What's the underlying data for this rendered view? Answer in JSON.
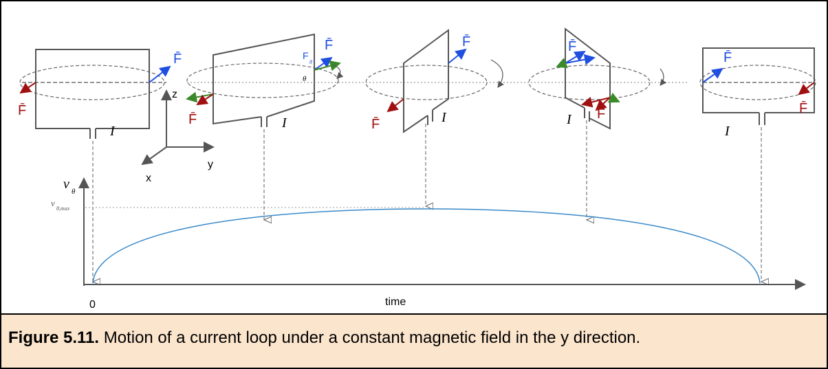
{
  "loops": [
    {
      "forces": [
        "F̄",
        "F̄"
      ],
      "current": "I"
    },
    {
      "forces": [
        "F̄",
        "F̄"
      ],
      "component": "F",
      "component_sub": "θ",
      "angle": "θ",
      "current": "I"
    },
    {
      "forces": [
        "F̄",
        "F̄"
      ],
      "current": "I"
    },
    {
      "forces": [
        "F̄",
        "F̄"
      ],
      "current": "I"
    },
    {
      "forces": [
        "F̄",
        "F̄"
      ],
      "current": "I"
    }
  ],
  "axes": {
    "z": "z",
    "y": "y",
    "x": "x"
  },
  "graph": {
    "y_label": "v",
    "y_label_sub": "θ",
    "y_max_label": "v",
    "y_max_sub": "θ,max",
    "origin_label": "0",
    "x_label": "time"
  },
  "caption": {
    "number": "Figure 5.11.",
    "text": " Motion of a current loop under a constant magnetic field in the y direction."
  }
}
